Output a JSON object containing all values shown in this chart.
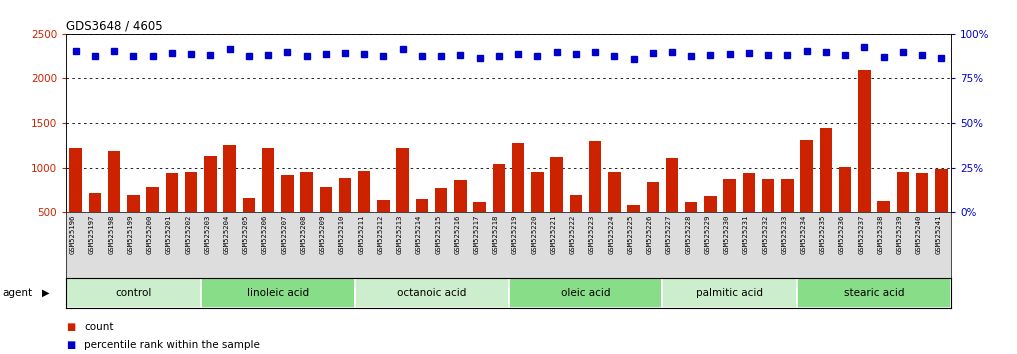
{
  "title": "GDS3648 / 4605",
  "samples": [
    "GSM525196",
    "GSM525197",
    "GSM525198",
    "GSM525199",
    "GSM525200",
    "GSM525201",
    "GSM525202",
    "GSM525203",
    "GSM525204",
    "GSM525205",
    "GSM525206",
    "GSM525207",
    "GSM525208",
    "GSM525209",
    "GSM525210",
    "GSM525211",
    "GSM525212",
    "GSM525213",
    "GSM525214",
    "GSM525215",
    "GSM525216",
    "GSM525217",
    "GSM525218",
    "GSM525219",
    "GSM525220",
    "GSM525221",
    "GSM525222",
    "GSM525223",
    "GSM525224",
    "GSM525225",
    "GSM525226",
    "GSM525227",
    "GSM525228",
    "GSM525229",
    "GSM525230",
    "GSM525231",
    "GSM525232",
    "GSM525233",
    "GSM525234",
    "GSM525235",
    "GSM525236",
    "GSM525237",
    "GSM525238",
    "GSM525239",
    "GSM525240",
    "GSM525241"
  ],
  "counts": [
    1220,
    720,
    1185,
    700,
    785,
    940,
    955,
    1135,
    1255,
    660,
    1220,
    920,
    950,
    780,
    890,
    960,
    635,
    1220,
    645,
    775,
    860,
    620,
    1040,
    1275,
    950,
    1115,
    700,
    1295,
    955,
    580,
    845,
    1110,
    615,
    680,
    870,
    945,
    875,
    870,
    1305,
    1440,
    1010,
    2095,
    625,
    955,
    940,
    980
  ],
  "percentiles": [
    2310,
    2255,
    2305,
    2255,
    2255,
    2280,
    2270,
    2265,
    2330,
    2250,
    2260,
    2290,
    2255,
    2270,
    2285,
    2275,
    2250,
    2325,
    2250,
    2255,
    2260,
    2225,
    2250,
    2270,
    2255,
    2295,
    2270,
    2295,
    2255,
    2215,
    2280,
    2300,
    2245,
    2265,
    2275,
    2280,
    2265,
    2260,
    2310,
    2295,
    2260,
    2355,
    2240,
    2290,
    2265,
    2225
  ],
  "groups": [
    {
      "label": "control",
      "start": 0,
      "end": 7,
      "color": "#cceecc"
    },
    {
      "label": "linoleic acid",
      "start": 7,
      "end": 15,
      "color": "#88dd88"
    },
    {
      "label": "octanoic acid",
      "start": 15,
      "end": 23,
      "color": "#cceecc"
    },
    {
      "label": "oleic acid",
      "start": 23,
      "end": 31,
      "color": "#88dd88"
    },
    {
      "label": "palmitic acid",
      "start": 31,
      "end": 38,
      "color": "#cceecc"
    },
    {
      "label": "stearic acid",
      "start": 38,
      "end": 46,
      "color": "#88dd88"
    }
  ],
  "bar_color": "#cc2200",
  "marker_color": "#0000cc",
  "ylim_left": [
    500,
    2500
  ],
  "ylim_right": [
    0,
    100
  ],
  "yticks_left": [
    500,
    1000,
    1500,
    2000,
    2500
  ],
  "yticks_right": [
    0,
    25,
    50,
    75,
    100
  ],
  "gridlines": [
    1000,
    1500,
    2000
  ],
  "agent_label": "agent",
  "legend_count_label": "count",
  "legend_pct_label": "percentile rank within the sample"
}
